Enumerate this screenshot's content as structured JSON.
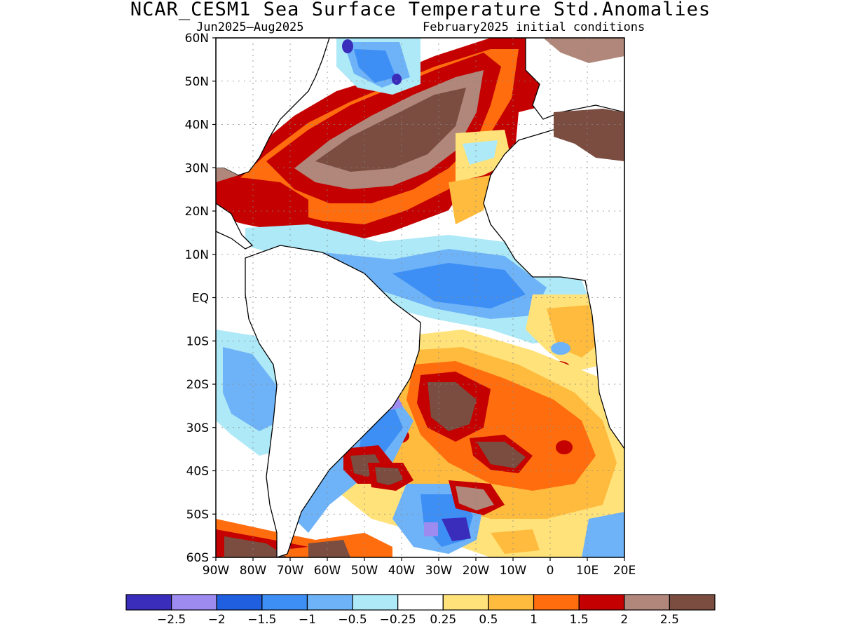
{
  "header": {
    "title": "NCAR_CESM1 Sea Surface Temperature Std.Anomalies",
    "period": "Jun2025–Aug2025",
    "initial_conditions": "February2025 initial conditions"
  },
  "axes": {
    "lat_labels": [
      "60N",
      "50N",
      "40N",
      "30N",
      "20N",
      "10N",
      "EQ",
      "10S",
      "20S",
      "30S",
      "40S",
      "50S",
      "60S"
    ],
    "lon_labels": [
      "90W",
      "80W",
      "70W",
      "60W",
      "50W",
      "40W",
      "30W",
      "20W",
      "10W",
      "0",
      "10E",
      "20E"
    ]
  },
  "colorbar": {
    "colors": [
      "#3a2dbb",
      "#9d8bf0",
      "#1f5fe0",
      "#3d8ff5",
      "#6eb3f7",
      "#ade9f7",
      "#ffffff",
      "#ffe27a",
      "#ffbb3d",
      "#ff6d0f",
      "#c40000",
      "#b0877a",
      "#7a4d40"
    ],
    "ticks": [
      "−2.5",
      "−2",
      "−1.5",
      "−1",
      "−0.5",
      "−0.25",
      "0.25",
      "0.5",
      "1",
      "1.5",
      "2",
      "2.5"
    ]
  },
  "map": {
    "region": "Atlantic Ocean 60S–60N, 90W–20E",
    "features": [
      {
        "label": "north-atlantic-warm-anomaly",
        "level": 2.5
      },
      {
        "label": "caribbean-warm-anomaly",
        "level": 2
      },
      {
        "label": "equatorial-atlantic-cool-anomaly",
        "level": -1
      },
      {
        "label": "south-atlantic-warm-anomaly",
        "level": 2.5
      },
      {
        "label": "southwest-atlantic-cool-anomaly",
        "level": -2
      }
    ]
  }
}
